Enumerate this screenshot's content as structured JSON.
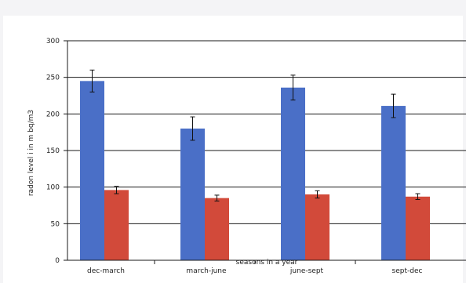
{
  "chart_data": {
    "type": "bar",
    "title": "",
    "xlabel": "seasons in a year",
    "ylabel": "radon level i in m bq/m3",
    "ylim": [
      0,
      300
    ],
    "yticks": [
      0,
      50,
      100,
      150,
      200,
      250,
      300
    ],
    "grid": true,
    "legend": "none",
    "categories": [
      "dec-march",
      "march-june",
      "june-sept",
      "sept-dec"
    ],
    "series": [
      {
        "color": "#4a6fc7",
        "values": [
          245,
          180,
          236,
          211
        ],
        "errors": [
          15,
          16,
          17,
          16
        ]
      },
      {
        "color": "#d24a3a",
        "values": [
          96,
          85,
          90,
          87
        ],
        "errors": [
          5,
          4,
          5,
          4
        ]
      }
    ]
  }
}
